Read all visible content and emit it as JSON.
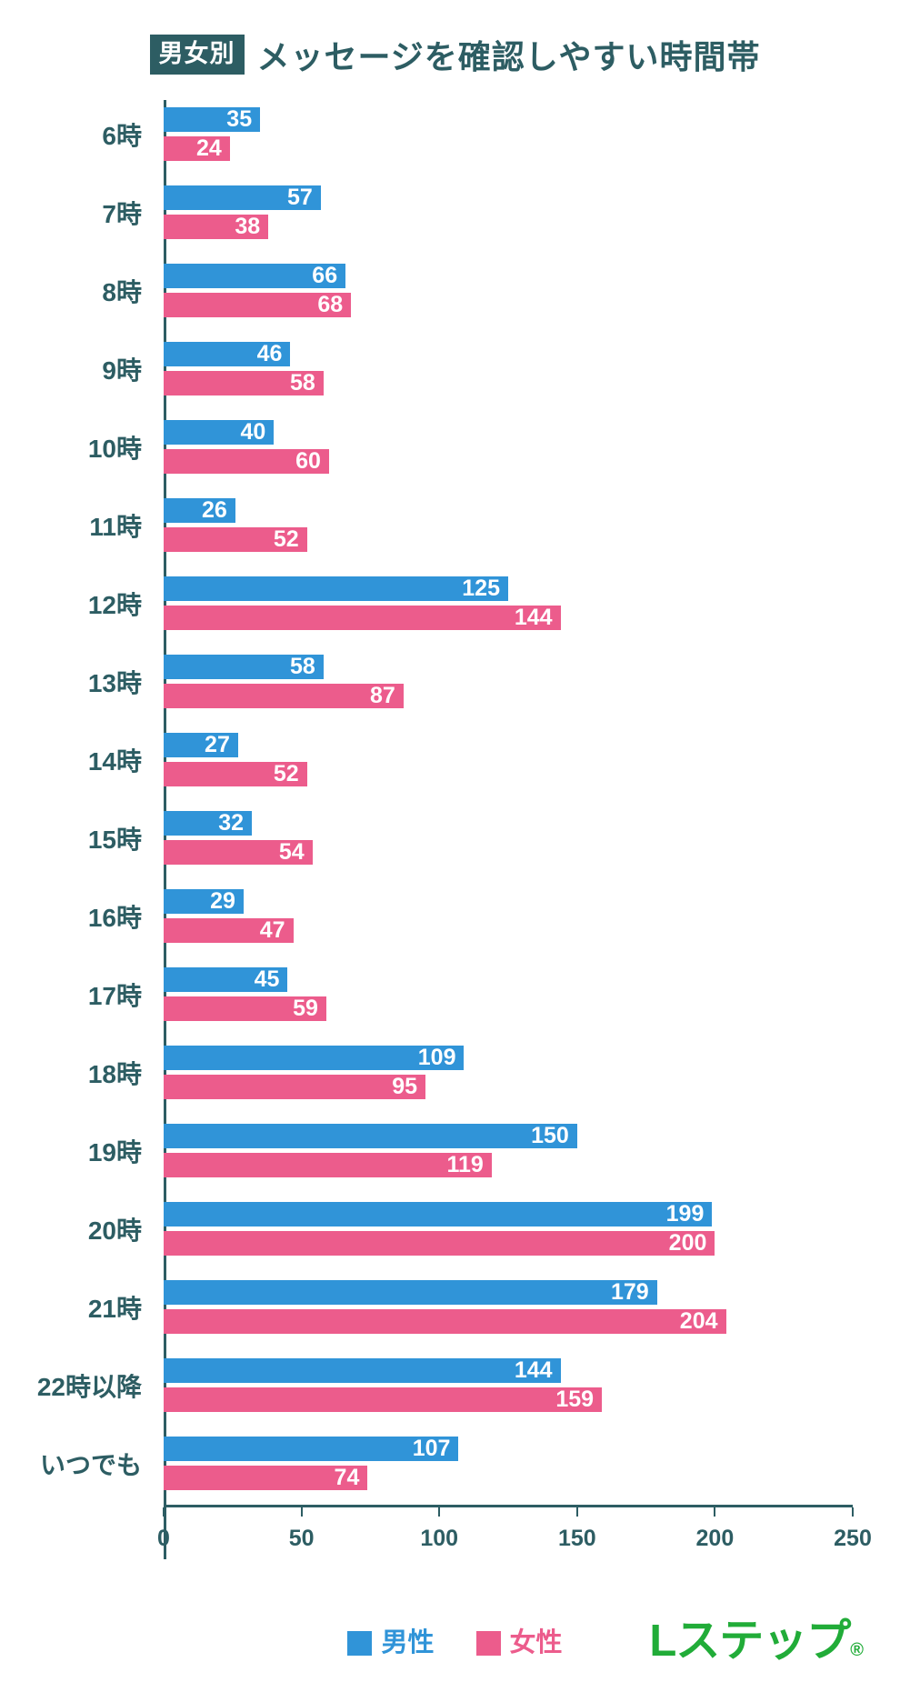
{
  "header": {
    "badge": "男女別",
    "title": "メッセージを確認しやすい時間帯"
  },
  "chart_data": {
    "type": "bar",
    "orientation": "horizontal",
    "title": "男女別 メッセージを確認しやすい時間帯",
    "categories": [
      "6時",
      "7時",
      "8時",
      "9時",
      "10時",
      "11時",
      "12時",
      "13時",
      "14時",
      "15時",
      "16時",
      "17時",
      "18時",
      "19時",
      "20時",
      "21時",
      "22時以降",
      "いつでも"
    ],
    "series": [
      {
        "name": "男性",
        "color": "#3094d8",
        "values": [
          35,
          57,
          66,
          46,
          40,
          26,
          125,
          58,
          27,
          32,
          29,
          45,
          109,
          150,
          199,
          179,
          144,
          107
        ]
      },
      {
        "name": "女性",
        "color": "#ec5c8c",
        "values": [
          24,
          38,
          68,
          58,
          60,
          52,
          144,
          87,
          52,
          54,
          47,
          59,
          95,
          119,
          200,
          204,
          159,
          74
        ]
      }
    ],
    "xlim": [
      0,
      250
    ],
    "x_ticks": [
      0,
      50,
      100,
      150,
      200,
      250
    ],
    "grid": false,
    "legend_position": "bottom",
    "value_labels": "inside-end"
  },
  "logo": {
    "text": "Lステップ",
    "registered": "®",
    "color": "#21ac38"
  },
  "colors": {
    "male": "#3094d8",
    "female": "#ec5c8c",
    "ink": "#2d5d63"
  }
}
